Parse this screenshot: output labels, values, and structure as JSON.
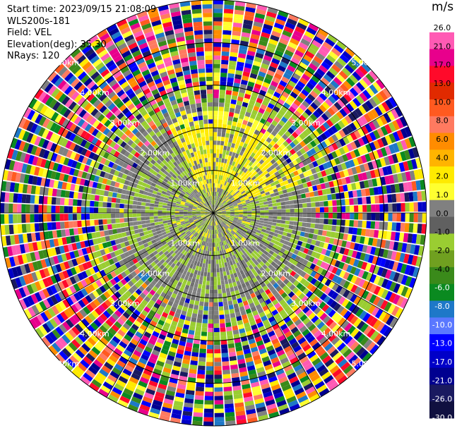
{
  "header": {
    "start_time": "Start time: 2023/09/15 21:08:09",
    "instrument": "WLS200s-181",
    "field": "Field: VEL",
    "elevation": "Elevation(deg): 35.30",
    "nrays": "NRays: 120"
  },
  "chart_data": {
    "type": "heatmap",
    "projection": "polar-ppi",
    "field": "VEL",
    "unit": "m/s",
    "n_rays": 120,
    "elevation_deg": 35.3,
    "range_rings_km": [
      1.0,
      2.0,
      3.0,
      4.0,
      5.0
    ],
    "range_labels": [
      "1.00km",
      "2.00km",
      "3.00km",
      "4.00km",
      "5.00km"
    ],
    "max_range_km": 5.0,
    "colorbar": {
      "range": [
        -30.0,
        30.0
      ],
      "ticks": [
        "26.0",
        "21.0",
        "17.0",
        "13.0",
        "10.0",
        "8.0",
        "6.0",
        "4.0",
        "2.0",
        "1.0",
        "0.0",
        "-1.0",
        "-2.0",
        "-4.0",
        "-6.0",
        "-8.0",
        "-10.0",
        "-13.0",
        "-17.0",
        "-21.0",
        "-26.0",
        "-30.0"
      ],
      "colors": [
        "#ffffff",
        "#ff5ab4",
        "#e8008c",
        "#ff0a2a",
        "#e12a00",
        "#ff5a20",
        "#ff7a60",
        "#ff8c00",
        "#ffb400",
        "#ffea00",
        "#ffff30",
        "#808080",
        "#606060",
        "#9acd32",
        "#70a020",
        "#3a8a1a",
        "#0a8a20",
        "#1e78c8",
        "#5a78ff",
        "#0000ff",
        "#0000c8",
        "#000090",
        "#1a1a60",
        "#101040"
      ]
    },
    "regions": [
      {
        "range_km": [
          0.0,
          1.0
        ],
        "description_values": "mixed gray/green near zero, yellow patches to north"
      },
      {
        "range_km": [
          1.0,
          2.0
        ],
        "description_values": "gray/green (-2 to 0) with yellow (2) in N and NE"
      },
      {
        "range_km": [
          2.0,
          2.6
        ],
        "description_values": "mostly green -2.0 with gray"
      },
      {
        "range_km": [
          2.6,
          5.0
        ],
        "description_values": "noise across full color scale"
      }
    ]
  }
}
